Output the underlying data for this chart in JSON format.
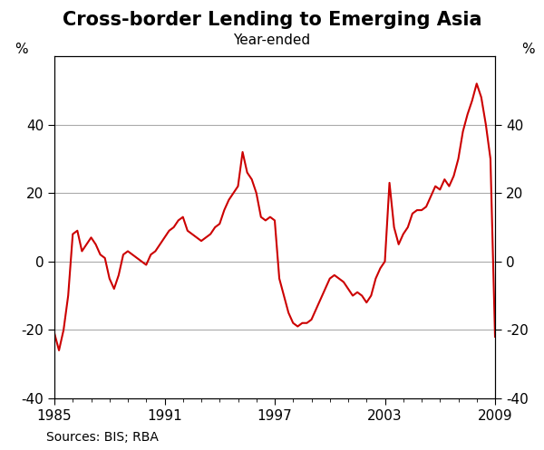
{
  "title": "Cross-border Lending to Emerging Asia",
  "subtitle": "Year-ended",
  "source": "Sources: BIS; RBA",
  "ylabel_left": "%",
  "ylabel_right": "%",
  "xlim": [
    1985,
    2009
  ],
  "ylim": [
    -40,
    60
  ],
  "yticks": [
    -40,
    -20,
    0,
    20,
    40
  ],
  "xticks": [
    1985,
    1991,
    1997,
    2003,
    2009
  ],
  "line_color": "#cc0000",
  "line_width": 1.5,
  "x": [
    1985.0,
    1985.25,
    1985.5,
    1985.75,
    1986.0,
    1986.25,
    1986.5,
    1986.75,
    1987.0,
    1987.25,
    1987.5,
    1987.75,
    1988.0,
    1988.25,
    1988.5,
    1988.75,
    1989.0,
    1989.25,
    1989.5,
    1989.75,
    1990.0,
    1990.25,
    1990.5,
    1990.75,
    1991.0,
    1991.25,
    1991.5,
    1991.75,
    1992.0,
    1992.25,
    1992.5,
    1992.75,
    1993.0,
    1993.25,
    1993.5,
    1993.75,
    1994.0,
    1994.25,
    1994.5,
    1994.75,
    1995.0,
    1995.25,
    1995.5,
    1995.75,
    1996.0,
    1996.25,
    1996.5,
    1996.75,
    1997.0,
    1997.25,
    1997.5,
    1997.75,
    1998.0,
    1998.25,
    1998.5,
    1998.75,
    1999.0,
    1999.25,
    1999.5,
    1999.75,
    2000.0,
    2000.25,
    2000.5,
    2000.75,
    2001.0,
    2001.25,
    2001.5,
    2001.75,
    2002.0,
    2002.25,
    2002.5,
    2002.75,
    2003.0,
    2003.25,
    2003.5,
    2003.75,
    2004.0,
    2004.25,
    2004.5,
    2004.75,
    2005.0,
    2005.25,
    2005.5,
    2005.75,
    2006.0,
    2006.25,
    2006.5,
    2006.75,
    2007.0,
    2007.25,
    2007.5,
    2007.75,
    2008.0,
    2008.25,
    2008.5,
    2008.75,
    2009.0
  ],
  "y": [
    -21,
    -26,
    -20,
    -10,
    8,
    9,
    3,
    5,
    7,
    5,
    2,
    1,
    -5,
    -8,
    -4,
    2,
    3,
    2,
    1,
    0,
    -1,
    2,
    3,
    5,
    7,
    9,
    10,
    12,
    13,
    9,
    8,
    7,
    6,
    7,
    8,
    10,
    11,
    15,
    18,
    20,
    22,
    32,
    26,
    24,
    20,
    13,
    12,
    13,
    12,
    -5,
    -10,
    -15,
    -18,
    -19,
    -18,
    -18,
    -17,
    -14,
    -11,
    -8,
    -5,
    -4,
    -5,
    -6,
    -8,
    -10,
    -9,
    -10,
    -12,
    -10,
    -5,
    -2,
    0,
    23,
    10,
    5,
    8,
    10,
    14,
    15,
    15,
    16,
    19,
    22,
    21,
    24,
    22,
    25,
    30,
    38,
    43,
    47,
    52,
    48,
    40,
    30,
    -22
  ],
  "grid_color": "#aaaaaa",
  "background_color": "#ffffff",
  "title_fontsize": 15,
  "subtitle_fontsize": 11,
  "tick_fontsize": 11,
  "source_fontsize": 10
}
